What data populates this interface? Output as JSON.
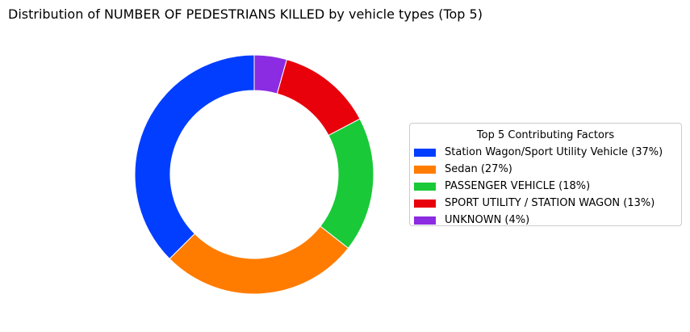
{
  "chart_data": {
    "type": "pie",
    "subtype": "donut",
    "title": "Distribution of NUMBER OF PEDESTRIANS KILLED by vehicle types (Top 5)",
    "legend": {
      "title": "Top 5 Contributing Factors",
      "placement": "right"
    },
    "slices": [
      {
        "label": "Station Wagon/Sport Utility Vehicle (37%)",
        "value": 37.5,
        "color": "#023eff"
      },
      {
        "label": "Sedan (27%)",
        "value": 27.0,
        "color": "#ff7c00"
      },
      {
        "label": "PASSENGER VEHICLE (18%)",
        "value": 18.3,
        "color": "#1ac938"
      },
      {
        "label": "SPORT UTILITY / STATION WAGON (13%)",
        "value": 12.9,
        "color": "#e8000b"
      },
      {
        "label": "UNKNOWN (4%)",
        "value": 4.4,
        "color": "#8b2be2"
      }
    ],
    "start_angle_deg": 90,
    "direction": "counterclockwise",
    "grid": false
  }
}
